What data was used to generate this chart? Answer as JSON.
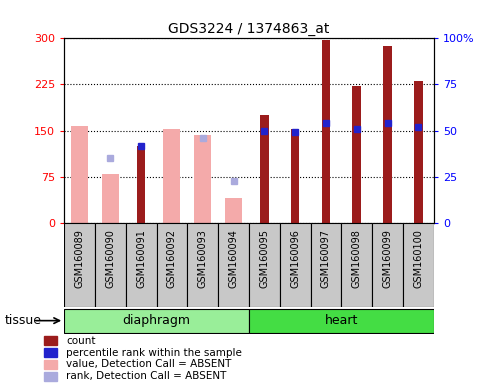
{
  "title": "GDS3224 / 1374863_at",
  "samples": [
    "GSM160089",
    "GSM160090",
    "GSM160091",
    "GSM160092",
    "GSM160093",
    "GSM160094",
    "GSM160095",
    "GSM160096",
    "GSM160097",
    "GSM160098",
    "GSM160099",
    "GSM160100"
  ],
  "red_count": [
    0,
    0,
    125,
    0,
    0,
    0,
    175,
    152,
    298,
    222,
    287,
    230
  ],
  "pink_value": [
    158,
    80,
    0,
    152,
    143,
    40,
    0,
    0,
    0,
    0,
    0,
    0
  ],
  "blue_rank_present": [
    null,
    null,
    41.7,
    null,
    null,
    null,
    50.0,
    49.3,
    54.3,
    51.0,
    54.3,
    51.7
  ],
  "light_blue_rank_absent": [
    null,
    35.0,
    null,
    null,
    46.0,
    22.7,
    null,
    null,
    null,
    null,
    null,
    null
  ],
  "ylim_left": [
    0,
    300
  ],
  "ylim_right": [
    0,
    100
  ],
  "yticks_left": [
    0,
    75,
    150,
    225,
    300
  ],
  "yticks_right": [
    0,
    25,
    50,
    75,
    100
  ],
  "ytick_labels_left": [
    "0",
    "75",
    "150",
    "225",
    "300"
  ],
  "ytick_labels_right": [
    "0",
    "25",
    "50",
    "75",
    "100%"
  ],
  "color_red": "#9B1C1C",
  "color_pink": "#F4AAAA",
  "color_blue": "#2222CC",
  "color_light_blue": "#AAAADD",
  "color_diaphragm": "#99EE99",
  "color_heart": "#44DD44",
  "color_xticklabel_bg": "#C8C8C8",
  "tissue_groups": [
    {
      "label": "diaphragm",
      "start": 0,
      "end": 5
    },
    {
      "label": "heart",
      "start": 6,
      "end": 11
    }
  ],
  "legend_items": [
    {
      "label": "count",
      "color": "#9B1C1C"
    },
    {
      "label": "percentile rank within the sample",
      "color": "#2222CC"
    },
    {
      "label": "value, Detection Call = ABSENT",
      "color": "#F4AAAA"
    },
    {
      "label": "rank, Detection Call = ABSENT",
      "color": "#AAAADD"
    }
  ]
}
